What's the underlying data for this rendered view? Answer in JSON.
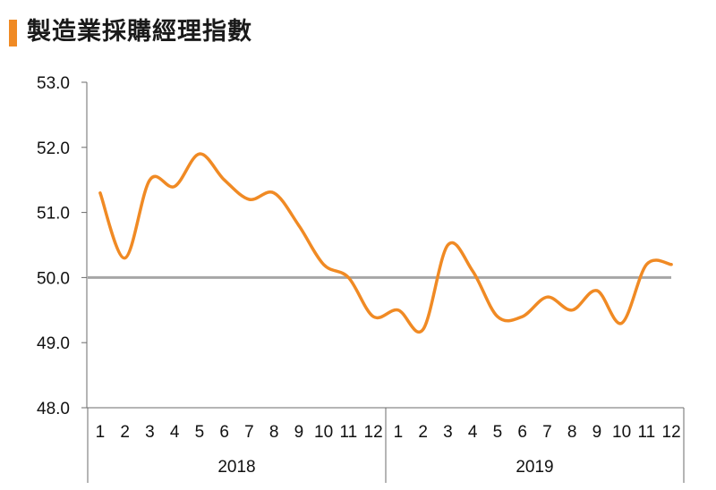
{
  "colors": {
    "accent": "#F08A24",
    "series": "#F08A24",
    "reference_line": "#A6A6A6",
    "axis": "#6B6B6B"
  },
  "chart_data": {
    "type": "line",
    "title": "製造業採購經理指數",
    "xlabel": "",
    "ylabel": "",
    "ylim": [
      48.0,
      53.0
    ],
    "yticks": [
      "48.0",
      "49.0",
      "50.0",
      "51.0",
      "52.0",
      "53.0"
    ],
    "ytick_values": [
      48.0,
      49.0,
      50.0,
      51.0,
      52.0,
      53.0
    ],
    "categories": [
      "1",
      "2",
      "3",
      "4",
      "5",
      "6",
      "7",
      "8",
      "9",
      "10",
      "11",
      "12",
      "1",
      "2",
      "3",
      "4",
      "5",
      "6",
      "7",
      "8",
      "9",
      "10",
      "11",
      "12"
    ],
    "groups": [
      {
        "label": "2018",
        "count": 12
      },
      {
        "label": "2019",
        "count": 12
      }
    ],
    "reference_line": 50.0,
    "grid": false,
    "series": [
      {
        "name": "製造業採購經理指數",
        "values": [
          51.3,
          50.3,
          51.5,
          51.4,
          51.9,
          51.5,
          51.2,
          51.3,
          50.8,
          50.2,
          50.0,
          49.4,
          49.5,
          49.2,
          50.5,
          50.1,
          49.4,
          49.4,
          49.7,
          49.5,
          49.8,
          49.3,
          50.2,
          50.2
        ]
      }
    ]
  }
}
